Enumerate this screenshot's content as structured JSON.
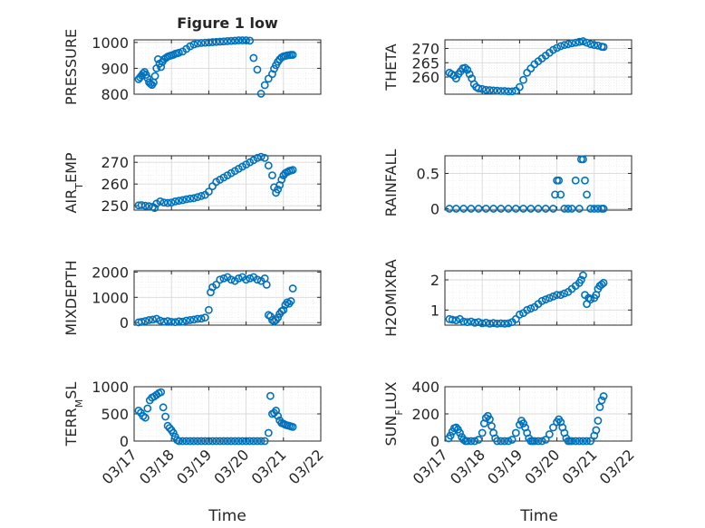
{
  "figure": {
    "title": "Figure 1 low"
  },
  "colors": {
    "marker": "#0072BD",
    "axis": "#262626",
    "grid": "#d9d9d9",
    "minor_grid": "#e6e6e6"
  },
  "chart_data": [
    {
      "type": "scatter",
      "ylabel": "PRESSURE",
      "title": "Figure 1 low",
      "xlim": [
        0,
        5
      ],
      "ylim": [
        800,
        1010
      ],
      "yticks": [
        800,
        900,
        1000
      ],
      "xtick_labels": [
        "03/17",
        "03/18",
        "03/19",
        "03/20",
        "03/21",
        "03/22"
      ],
      "grid": true,
      "minor_grid": true,
      "marker": "circle",
      "x": [
        0.12,
        0.16,
        0.2,
        0.24,
        0.28,
        0.32,
        0.36,
        0.4,
        0.44,
        0.48,
        0.52,
        0.56,
        0.6,
        0.64,
        0.68,
        0.72,
        0.76,
        0.8,
        0.85,
        0.9,
        0.95,
        1.0,
        1.05,
        1.1,
        1.15,
        1.2,
        1.3,
        1.4,
        1.5,
        1.6,
        1.7,
        1.8,
        1.9,
        2.0,
        2.1,
        2.2,
        2.3,
        2.4,
        2.5,
        2.6,
        2.7,
        2.8,
        2.9,
        3.0,
        3.1,
        3.2,
        3.3,
        3.4,
        3.5,
        3.6,
        3.7,
        3.75,
        3.8,
        3.85,
        3.9,
        3.95,
        4.0,
        4.05,
        4.1,
        4.15,
        4.2,
        4.25
      ],
      "y": [
        858,
        865,
        872,
        880,
        886,
        875,
        862,
        846,
        840,
        836,
        845,
        870,
        900,
        935,
        918,
        905,
        925,
        935,
        940,
        945,
        948,
        950,
        952,
        956,
        958,
        960,
        965,
        975,
        985,
        992,
        996,
        998,
        999,
        1000,
        1001,
        1002,
        1003,
        1004,
        1005,
        1006,
        1007,
        1008,
        1008,
        1008,
        1007,
        940,
        895,
        802,
        835,
        860,
        878,
        898,
        912,
        925,
        935,
        942,
        946,
        948,
        950,
        951,
        952,
        952
      ]
    },
    {
      "type": "scatter",
      "ylabel": "THETA",
      "xlim": [
        0,
        5
      ],
      "ylim": [
        254,
        273
      ],
      "yticks": [
        260,
        265,
        270
      ],
      "xtick_labels": [
        "03/17",
        "03/18",
        "03/19",
        "03/20",
        "03/21",
        "03/22"
      ],
      "grid": true,
      "minor_grid": true,
      "marker": "circle",
      "x": [
        0.12,
        0.18,
        0.24,
        0.3,
        0.36,
        0.42,
        0.48,
        0.54,
        0.6,
        0.66,
        0.72,
        0.78,
        0.84,
        0.9,
        1.0,
        1.1,
        1.2,
        1.3,
        1.4,
        1.5,
        1.6,
        1.7,
        1.8,
        1.9,
        2.0,
        2.1,
        2.2,
        2.3,
        2.4,
        2.5,
        2.6,
        2.7,
        2.8,
        2.9,
        3.0,
        3.1,
        3.2,
        3.3,
        3.4,
        3.5,
        3.6,
        3.7,
        3.8,
        3.9,
        4.0,
        4.1,
        4.2,
        4.25
      ],
      "y": [
        261.5,
        261,
        260.5,
        259.5,
        261,
        262,
        263,
        263.2,
        262.5,
        261,
        259.5,
        257.5,
        256.5,
        256,
        255.8,
        255.5,
        255.4,
        255.3,
        255.2,
        255.1,
        255.1,
        255,
        255,
        255.2,
        256.5,
        259,
        261.5,
        263,
        264.5,
        265.5,
        266.5,
        267.5,
        268.5,
        269.5,
        270.2,
        270.8,
        271.2,
        271.5,
        271.8,
        272,
        272.3,
        272.5,
        272,
        271.5,
        271.2,
        271,
        270.6,
        270.5
      ]
    },
    {
      "type": "scatter",
      "ylabel": "AIR_TEMP",
      "xlim": [
        0,
        5
      ],
      "ylim": [
        248,
        273
      ],
      "yticks": [
        250,
        260,
        270
      ],
      "xtick_labels": [
        "03/17",
        "03/18",
        "03/19",
        "03/20",
        "03/21",
        "03/22"
      ],
      "grid": true,
      "minor_grid": true,
      "marker": "circle",
      "x": [
        0.12,
        0.2,
        0.3,
        0.4,
        0.5,
        0.55,
        0.6,
        0.7,
        0.8,
        0.9,
        1.0,
        1.1,
        1.2,
        1.3,
        1.4,
        1.5,
        1.6,
        1.7,
        1.8,
        1.9,
        2.0,
        2.1,
        2.2,
        2.3,
        2.4,
        2.5,
        2.6,
        2.7,
        2.8,
        2.9,
        3.0,
        3.1,
        3.2,
        3.3,
        3.4,
        3.5,
        3.6,
        3.7,
        3.75,
        3.8,
        3.85,
        3.9,
        3.95,
        4.0,
        4.05,
        4.1,
        4.15,
        4.2,
        4.25
      ],
      "y": [
        250.2,
        250.3,
        250,
        249.8,
        249.5,
        249,
        251,
        252,
        251.5,
        251.3,
        251.5,
        252,
        252.3,
        252.6,
        253,
        253.3,
        253.5,
        254,
        254.5,
        255,
        256.5,
        259,
        261,
        262,
        263,
        264,
        265,
        266,
        267,
        268,
        269,
        270,
        271,
        272,
        272.5,
        272,
        268.5,
        264,
        258.5,
        256,
        257.5,
        259.5,
        262,
        264,
        265,
        265.5,
        266,
        266.2,
        266.5
      ]
    },
    {
      "type": "scatter",
      "ylabel": "RAINFALL",
      "xlim": [
        0,
        5
      ],
      "ylim": [
        -0.02,
        0.75
      ],
      "yticks": [
        0,
        0.5
      ],
      "xtick_labels": [
        "03/17",
        "03/18",
        "03/19",
        "03/20",
        "03/21",
        "03/22"
      ],
      "grid": true,
      "minor_grid": true,
      "marker": "circle",
      "x": [
        0.12,
        0.3,
        0.5,
        0.7,
        0.9,
        1.1,
        1.3,
        1.5,
        1.7,
        1.9,
        2.1,
        2.3,
        2.5,
        2.7,
        2.9,
        2.95,
        3.0,
        3.05,
        3.1,
        3.2,
        3.3,
        3.4,
        3.5,
        3.6,
        3.65,
        3.7,
        3.75,
        3.8,
        3.9,
        4.0,
        4.1,
        4.2,
        4.25
      ],
      "y": [
        0,
        0,
        0,
        0,
        0,
        0,
        0,
        0,
        0,
        0,
        0,
        0,
        0,
        0,
        0,
        0.2,
        0.4,
        0.4,
        0.2,
        0,
        0,
        0,
        0.4,
        0,
        0.7,
        0.7,
        0.4,
        0.2,
        0,
        0,
        0,
        0,
        0
      ]
    },
    {
      "type": "scatter",
      "ylabel": "MIXDEPTH",
      "xlim": [
        0,
        5
      ],
      "ylim": [
        -100,
        2050
      ],
      "yticks": [
        0,
        1000,
        2000
      ],
      "xtick_labels": [
        "03/17",
        "03/18",
        "03/19",
        "03/20",
        "03/21",
        "03/22"
      ],
      "grid": true,
      "minor_grid": true,
      "marker": "circle",
      "x": [
        0.12,
        0.2,
        0.3,
        0.4,
        0.5,
        0.6,
        0.7,
        0.8,
        0.9,
        1.0,
        1.1,
        1.2,
        1.3,
        1.4,
        1.5,
        1.6,
        1.7,
        1.8,
        1.9,
        2.0,
        2.05,
        2.1,
        2.2,
        2.3,
        2.4,
        2.5,
        2.6,
        2.7,
        2.8,
        2.9,
        3.0,
        3.1,
        3.2,
        3.3,
        3.4,
        3.5,
        3.55,
        3.6,
        3.65,
        3.7,
        3.75,
        3.8,
        3.85,
        3.9,
        3.95,
        4.0,
        4.05,
        4.1,
        4.15,
        4.2,
        4.25
      ],
      "y": [
        10,
        30,
        60,
        100,
        120,
        150,
        80,
        40,
        60,
        30,
        20,
        50,
        40,
        80,
        100,
        120,
        150,
        160,
        200,
        500,
        1200,
        1400,
        1500,
        1700,
        1750,
        1800,
        1700,
        1650,
        1750,
        1800,
        1700,
        1750,
        1800,
        1700,
        1650,
        1750,
        1500,
        300,
        250,
        100,
        50,
        100,
        200,
        350,
        450,
        500,
        700,
        800,
        750,
        850,
        1350
      ]
    },
    {
      "type": "scatter",
      "ylabel": "H2OMIXRA",
      "xlim": [
        0,
        5
      ],
      "ylim": [
        0.5,
        2.3
      ],
      "yticks": [
        1,
        2
      ],
      "xtick_labels": [
        "03/17",
        "03/18",
        "03/19",
        "03/20",
        "03/21",
        "03/22"
      ],
      "grid": true,
      "minor_grid": true,
      "marker": "circle",
      "x": [
        0.12,
        0.2,
        0.3,
        0.4,
        0.5,
        0.6,
        0.7,
        0.8,
        0.9,
        1.0,
        1.1,
        1.2,
        1.3,
        1.4,
        1.5,
        1.6,
        1.7,
        1.8,
        1.9,
        2.0,
        2.1,
        2.2,
        2.3,
        2.4,
        2.5,
        2.6,
        2.7,
        2.8,
        2.9,
        3.0,
        3.1,
        3.2,
        3.3,
        3.4,
        3.5,
        3.6,
        3.65,
        3.7,
        3.75,
        3.8,
        3.85,
        3.9,
        4.0,
        4.05,
        4.1,
        4.15,
        4.2,
        4.25
      ],
      "y": [
        0.7,
        0.68,
        0.66,
        0.7,
        0.62,
        0.6,
        0.62,
        0.58,
        0.6,
        0.56,
        0.58,
        0.55,
        0.57,
        0.55,
        0.56,
        0.55,
        0.56,
        0.6,
        0.7,
        0.85,
        0.9,
        1.0,
        1.05,
        1.1,
        1.2,
        1.3,
        1.35,
        1.4,
        1.45,
        1.5,
        1.5,
        1.55,
        1.6,
        1.7,
        1.8,
        1.9,
        2.0,
        2.15,
        1.5,
        1.2,
        1.4,
        1.35,
        1.4,
        1.5,
        1.7,
        1.8,
        1.85,
        1.9
      ]
    },
    {
      "type": "scatter",
      "ylabel": "TERR_MSL",
      "xlim": [
        0,
        5
      ],
      "ylim": [
        0,
        1000
      ],
      "yticks": [
        0,
        500,
        1000
      ],
      "xtick_labels": [
        "03/17",
        "03/18",
        "03/19",
        "03/20",
        "03/21",
        "03/22"
      ],
      "grid": true,
      "minor_grid": true,
      "marker": "circle",
      "x": [
        0.12,
        0.18,
        0.24,
        0.3,
        0.36,
        0.42,
        0.48,
        0.54,
        0.6,
        0.66,
        0.72,
        0.78,
        0.84,
        0.9,
        0.95,
        1.0,
        1.05,
        1.1,
        1.15,
        1.2,
        1.3,
        1.4,
        1.5,
        1.6,
        1.7,
        1.8,
        1.9,
        2.0,
        2.1,
        2.2,
        2.3,
        2.4,
        2.5,
        2.6,
        2.7,
        2.8,
        2.9,
        3.0,
        3.1,
        3.2,
        3.3,
        3.4,
        3.5,
        3.6,
        3.65,
        3.7,
        3.75,
        3.8,
        3.85,
        3.9,
        3.95,
        4.0,
        4.05,
        4.1,
        4.15,
        4.2,
        4.25
      ],
      "y": [
        560,
        520,
        460,
        430,
        600,
        750,
        800,
        820,
        850,
        880,
        900,
        620,
        450,
        280,
        240,
        200,
        150,
        80,
        20,
        0,
        0,
        0,
        0,
        0,
        0,
        0,
        0,
        0,
        0,
        0,
        0,
        0,
        0,
        0,
        0,
        0,
        0,
        0,
        0,
        0,
        0,
        0,
        0,
        150,
        830,
        500,
        520,
        560,
        460,
        380,
        330,
        320,
        300,
        290,
        280,
        270,
        260
      ]
    },
    {
      "type": "scatter",
      "ylabel": "SUN_FLUX",
      "xlim": [
        0,
        5
      ],
      "ylim": [
        0,
        400
      ],
      "yticks": [
        0,
        200,
        400
      ],
      "xtick_labels": [
        "03/17",
        "03/18",
        "03/19",
        "03/20",
        "03/21",
        "03/22"
      ],
      "grid": true,
      "minor_grid": true,
      "marker": "circle",
      "x": [
        0.1,
        0.15,
        0.2,
        0.25,
        0.3,
        0.35,
        0.4,
        0.45,
        0.5,
        0.55,
        0.6,
        0.7,
        0.8,
        0.9,
        1.0,
        1.05,
        1.1,
        1.15,
        1.2,
        1.25,
        1.3,
        1.35,
        1.4,
        1.5,
        1.6,
        1.7,
        1.8,
        1.9,
        2.0,
        2.05,
        2.1,
        2.15,
        2.2,
        2.25,
        2.3,
        2.35,
        2.4,
        2.5,
        2.6,
        2.7,
        2.8,
        2.9,
        3.0,
        3.05,
        3.1,
        3.15,
        3.2,
        3.25,
        3.3,
        3.35,
        3.4,
        3.5,
        3.6,
        3.7,
        3.8,
        3.9,
        4.0,
        4.05,
        4.1,
        4.15,
        4.2,
        4.25
      ],
      "y": [
        20,
        40,
        70,
        95,
        100,
        85,
        60,
        30,
        10,
        0,
        0,
        0,
        0,
        10,
        60,
        130,
        170,
        185,
        160,
        110,
        60,
        20,
        0,
        0,
        0,
        0,
        10,
        60,
        120,
        150,
        130,
        100,
        60,
        20,
        0,
        0,
        0,
        0,
        0,
        10,
        50,
        100,
        140,
        160,
        140,
        100,
        60,
        20,
        0,
        0,
        0,
        0,
        0,
        0,
        0,
        0,
        40,
        80,
        150,
        250,
        300,
        330
      ]
    }
  ],
  "xlabels": [
    "Time",
    "Time"
  ]
}
